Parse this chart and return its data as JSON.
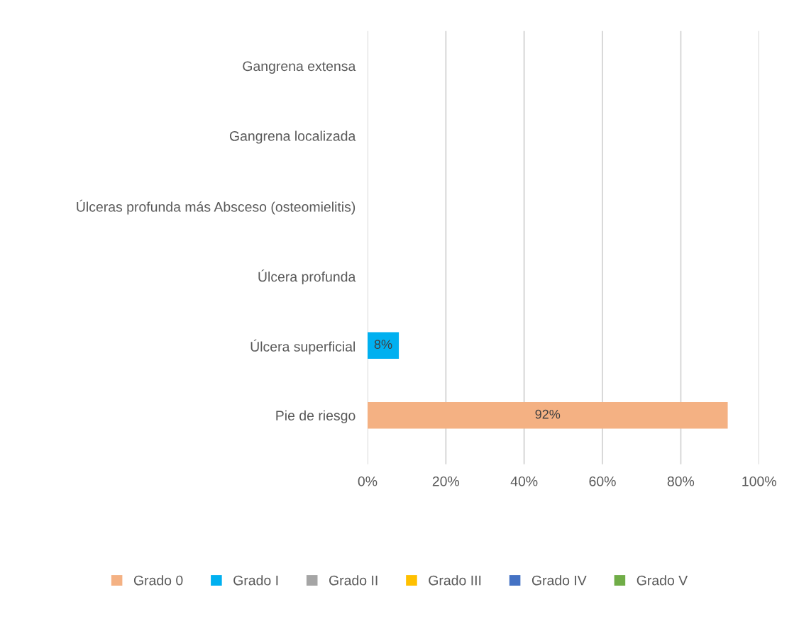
{
  "chart_data": {
    "type": "bar",
    "orientation": "horizontal",
    "stacked": true,
    "categories": [
      "Gangrena extensa",
      "Gangrena localizada",
      "Úlceras profunda más Absceso (osteomielitis)",
      "Úlcera profunda",
      "Úlcera superficial",
      "Pie de riesgo"
    ],
    "series": [
      {
        "name": "Grado 0",
        "color": "#f4b183",
        "values": [
          null,
          null,
          null,
          null,
          null,
          92
        ],
        "value_labels": [
          null,
          null,
          null,
          null,
          null,
          "92%"
        ]
      },
      {
        "name": "Grado I",
        "color": "#00b0f0",
        "values": [
          null,
          null,
          null,
          null,
          8,
          null
        ],
        "value_labels": [
          null,
          null,
          null,
          null,
          "8%",
          null
        ]
      },
      {
        "name": "Grado II",
        "color": "#a5a5a5",
        "values": [
          null,
          null,
          null,
          null,
          null,
          null
        ]
      },
      {
        "name": "Grado III",
        "color": "#ffc000",
        "values": [
          null,
          null,
          null,
          null,
          null,
          null
        ]
      },
      {
        "name": "Grado IV",
        "color": "#4472c4",
        "values": [
          null,
          null,
          null,
          null,
          null,
          null
        ]
      },
      {
        "name": "Grado V",
        "color": "#70ad47",
        "values": [
          null,
          null,
          null,
          null,
          null,
          null
        ]
      }
    ],
    "xlim": [
      0,
      100
    ],
    "xticks": [
      {
        "value": 0,
        "label": "0%"
      },
      {
        "value": 20,
        "label": "20%"
      },
      {
        "value": 40,
        "label": "40%"
      },
      {
        "value": 60,
        "label": "60%"
      },
      {
        "value": 80,
        "label": "80%"
      },
      {
        "value": 100,
        "label": "100%"
      }
    ],
    "grid": "x",
    "legend": "bottom"
  }
}
